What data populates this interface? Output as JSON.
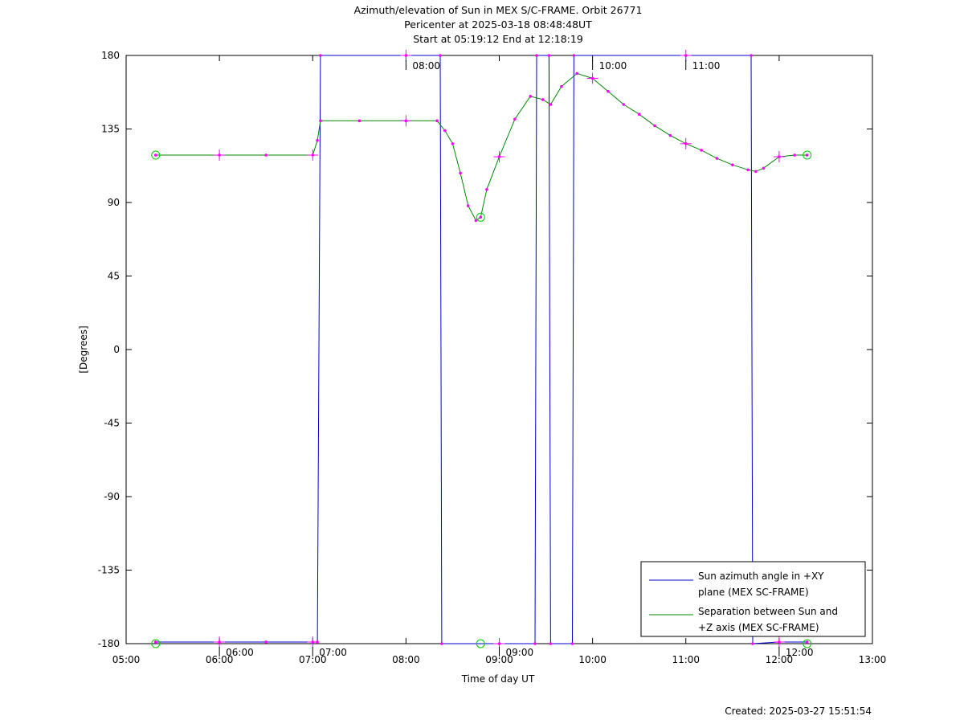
{
  "title": {
    "line1": "Azimuth/elevation of Sun in MEX S/C-FRAME.  Orbit 26771",
    "line2": "Pericenter at 2025-03-18 08:48:48UT",
    "line3": "Start at 05:19:12 End at 12:18:19"
  },
  "footer": {
    "created": "Created: 2025-03-27 15:51:54"
  },
  "chart_data": {
    "type": "line",
    "xlabel": "Time of day UT",
    "ylabel": "[Degrees]",
    "xlim": [
      "05:00",
      "13:00"
    ],
    "ylim": [
      -180,
      180
    ],
    "x_ticks": [
      "05:00",
      "06:00",
      "07:00",
      "08:00",
      "09:00",
      "10:00",
      "11:00",
      "12:00",
      "13:00"
    ],
    "y_ticks": [
      180,
      135,
      90,
      45,
      0,
      -45,
      -90,
      -135,
      -180
    ],
    "grid": false,
    "legend_position": "bottom-right",
    "marker_color": "#ff00ff",
    "start_end_marker_color": "#00cc00",
    "series": [
      {
        "name": "Sun azimuth angle in +XY plane (MEX SC-FRAME)",
        "legend_line1": "Sun azimuth angle in +XY",
        "legend_line2": "plane (MEX SC-FRAME)",
        "color": "#0000cc",
        "points": [
          [
            "05:19",
            -179
          ],
          [
            "06:00",
            -179
          ],
          [
            "06:30",
            -179
          ],
          [
            "07:00",
            -179
          ],
          [
            "07:03",
            -179
          ],
          [
            "07:05",
            180
          ],
          [
            "08:00",
            180
          ],
          [
            "08:22",
            180
          ],
          [
            "08:23",
            -180
          ],
          [
            "09:00",
            -180
          ],
          [
            "09:23",
            -180
          ],
          [
            "09:24",
            180
          ],
          [
            "09:32",
            180
          ],
          [
            "09:33",
            -180
          ],
          [
            "09:47",
            -180
          ],
          [
            "09:48",
            180
          ],
          [
            "11:00",
            180
          ],
          [
            "11:42",
            180
          ],
          [
            "11:43",
            -180
          ],
          [
            "12:00",
            -179
          ],
          [
            "12:18",
            -179
          ]
        ]
      },
      {
        "name": "Separation between Sun and +Z axis (MEX SC-FRAME)",
        "legend_line1": "Separation between Sun and",
        "legend_line2": "+Z axis (MEX SC-FRAME)",
        "color": "#008800",
        "points": [
          [
            "05:19",
            119
          ],
          [
            "06:00",
            119
          ],
          [
            "06:30",
            119
          ],
          [
            "07:00",
            119
          ],
          [
            "07:03",
            128
          ],
          [
            "07:05",
            140
          ],
          [
            "07:30",
            140
          ],
          [
            "08:00",
            140
          ],
          [
            "08:20",
            140
          ],
          [
            "08:25",
            134
          ],
          [
            "08:30",
            126
          ],
          [
            "08:35",
            108
          ],
          [
            "08:40",
            88
          ],
          [
            "08:45",
            79
          ],
          [
            "08:48",
            81
          ],
          [
            "08:52",
            98
          ],
          [
            "09:00",
            118
          ],
          [
            "09:10",
            141
          ],
          [
            "09:20",
            155
          ],
          [
            "09:28",
            153
          ],
          [
            "09:33",
            150
          ],
          [
            "09:40",
            161
          ],
          [
            "09:50",
            169
          ],
          [
            "10:00",
            166
          ],
          [
            "10:10",
            158
          ],
          [
            "10:20",
            150
          ],
          [
            "10:30",
            144
          ],
          [
            "10:40",
            137
          ],
          [
            "10:50",
            131
          ],
          [
            "11:00",
            126
          ],
          [
            "11:10",
            122
          ],
          [
            "11:20",
            117
          ],
          [
            "11:30",
            113
          ],
          [
            "11:40",
            110
          ],
          [
            "11:45",
            109
          ],
          [
            "11:50",
            111
          ],
          [
            "12:00",
            118
          ],
          [
            "12:10",
            119
          ],
          [
            "12:18",
            119
          ]
        ]
      }
    ],
    "annotations": {
      "top_time_labels": [
        "08:00",
        "10:00",
        "11:00"
      ],
      "bottom_time_labels": [
        "06:00",
        "07:00",
        "09:00",
        "12:00"
      ]
    }
  }
}
